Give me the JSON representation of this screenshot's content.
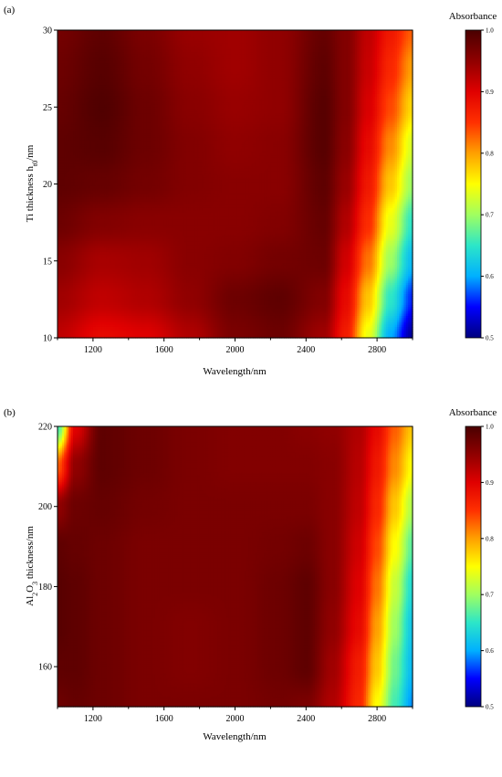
{
  "chart_data": [
    {
      "type": "heatmap",
      "panel_label": "(a)",
      "xlabel": "Wavelength/nm",
      "ylabel": "Ti thickness h",
      "ylabel_sub": "t0",
      "ylabel_suffix": "/nm",
      "xlim": [
        1000,
        3000
      ],
      "ylim": [
        10,
        30
      ],
      "xticks": [
        1200,
        1600,
        2000,
        2400,
        2800
      ],
      "yticks": [
        10,
        15,
        20,
        25,
        30
      ],
      "colorbar": {
        "title": "Absorbance",
        "range": [
          0.5,
          1.0
        ],
        "ticks": [
          "0.5",
          "0.6",
          "0.7",
          "0.8",
          "0.9",
          "1.0"
        ],
        "colormap": [
          "#00007f",
          "#0000ff",
          "#00b0ff",
          "#2ce6c8",
          "#a0ff60",
          "#ffff00",
          "#ffa000",
          "#ff3000",
          "#e00000",
          "#900000",
          "#4a0000"
        ]
      },
      "grid_x": [
        1000,
        1250,
        1500,
        1750,
        2000,
        2250,
        2500,
        2625,
        2750,
        2875,
        3000
      ],
      "grid_y": [
        10,
        12.5,
        15,
        17.5,
        20,
        22.5,
        25,
        27.5,
        30
      ],
      "z": [
        [
          0.92,
          0.89,
          0.9,
          0.93,
          0.965,
          0.975,
          0.94,
          0.87,
          0.74,
          0.6,
          0.51
        ],
        [
          0.94,
          0.92,
          0.93,
          0.95,
          0.975,
          0.985,
          0.96,
          0.89,
          0.78,
          0.65,
          0.56
        ],
        [
          0.955,
          0.935,
          0.94,
          0.955,
          0.96,
          0.97,
          0.975,
          0.91,
          0.82,
          0.7,
          0.61
        ],
        [
          0.975,
          0.96,
          0.955,
          0.955,
          0.955,
          0.96,
          0.98,
          0.93,
          0.855,
          0.74,
          0.65
        ],
        [
          0.985,
          0.98,
          0.97,
          0.96,
          0.955,
          0.955,
          0.985,
          0.945,
          0.875,
          0.78,
          0.7
        ],
        [
          0.985,
          0.99,
          0.975,
          0.96,
          0.95,
          0.955,
          0.99,
          0.955,
          0.89,
          0.81,
          0.73
        ],
        [
          0.98,
          0.995,
          0.975,
          0.955,
          0.945,
          0.95,
          0.99,
          0.96,
          0.905,
          0.84,
          0.77
        ],
        [
          0.975,
          0.99,
          0.97,
          0.95,
          0.94,
          0.95,
          0.985,
          0.96,
          0.915,
          0.86,
          0.8
        ],
        [
          0.97,
          0.985,
          0.965,
          0.945,
          0.94,
          0.95,
          0.98,
          0.96,
          0.92,
          0.875,
          0.83
        ]
      ]
    },
    {
      "type": "heatmap",
      "panel_label": "(b)",
      "xlabel": "Wavelength/nm",
      "ylabel": "Al",
      "ylabel_sub": "2",
      "ylabel_mid": "O",
      "ylabel_sub2": "3",
      "ylabel_suffix": " thickness/nm",
      "xlim": [
        1000,
        3000
      ],
      "ylim": [
        150,
        220
      ],
      "xticks": [
        1200,
        1600,
        2000,
        2400,
        2800
      ],
      "yticks": [
        160,
        180,
        200,
        220
      ],
      "colorbar": {
        "title": "Absorbance",
        "range": [
          0.5,
          1.0
        ],
        "ticks": [
          "0.5",
          "0.6",
          "0.7",
          "0.8",
          "0.9",
          "1.0"
        ],
        "colormap": [
          "#00007f",
          "#0000ff",
          "#00b0ff",
          "#2ce6c8",
          "#a0ff60",
          "#ffff00",
          "#ffa000",
          "#ff3000",
          "#e00000",
          "#900000",
          "#4a0000"
        ]
      },
      "grid_x": [
        1000,
        1100,
        1250,
        1500,
        1750,
        2000,
        2250,
        2400,
        2550,
        2700,
        2800,
        2900,
        3000
      ],
      "grid_y": [
        150,
        160,
        170,
        180,
        190,
        200,
        210,
        220
      ],
      "z": [
        [
          0.975,
          0.98,
          0.975,
          0.965,
          0.965,
          0.965,
          0.97,
          0.965,
          0.93,
          0.86,
          0.75,
          0.66,
          0.59
        ],
        [
          0.985,
          0.985,
          0.975,
          0.965,
          0.96,
          0.965,
          0.975,
          0.985,
          0.94,
          0.87,
          0.78,
          0.68,
          0.61
        ],
        [
          0.99,
          0.985,
          0.975,
          0.965,
          0.96,
          0.965,
          0.975,
          0.985,
          0.95,
          0.89,
          0.8,
          0.7,
          0.62
        ],
        [
          0.99,
          0.985,
          0.975,
          0.965,
          0.965,
          0.965,
          0.975,
          0.985,
          0.955,
          0.9,
          0.82,
          0.72,
          0.64
        ],
        [
          0.985,
          0.98,
          0.975,
          0.965,
          0.965,
          0.965,
          0.97,
          0.975,
          0.955,
          0.91,
          0.84,
          0.75,
          0.67
        ],
        [
          0.95,
          0.975,
          0.98,
          0.97,
          0.965,
          0.965,
          0.965,
          0.965,
          0.955,
          0.92,
          0.86,
          0.78,
          0.71
        ],
        [
          0.83,
          0.95,
          0.985,
          0.975,
          0.965,
          0.96,
          0.96,
          0.96,
          0.955,
          0.925,
          0.875,
          0.81,
          0.75
        ],
        [
          0.66,
          0.9,
          0.985,
          0.975,
          0.965,
          0.96,
          0.96,
          0.955,
          0.95,
          0.93,
          0.89,
          0.83,
          0.78
        ]
      ]
    }
  ]
}
